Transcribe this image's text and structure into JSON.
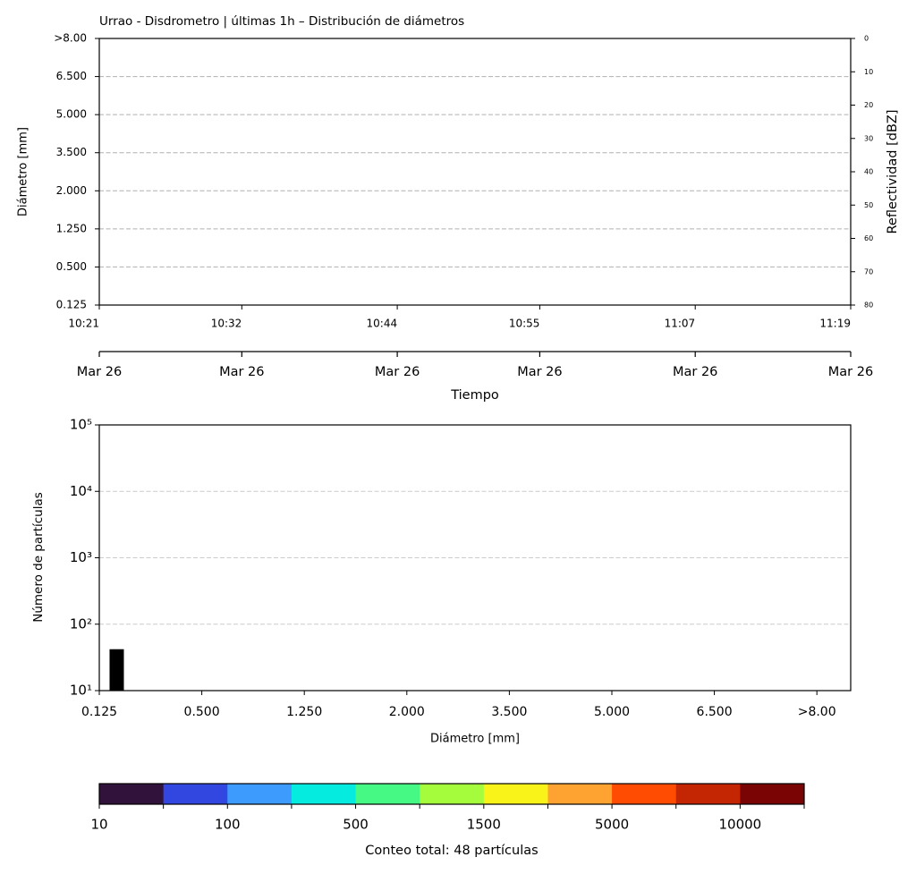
{
  "chart_data": [
    {
      "type": "heatmap",
      "title": "Urrao - Disdrometro | últimas 1h – Distribución de diámetros",
      "xlabel": "Tiempo",
      "ylabel": "Diámetro [mm]",
      "y2label": "Reflectividad [dBZ]",
      "xlim": [
        "10:21",
        "11:19"
      ],
      "xticks": [
        "10:21",
        "10:32",
        "10:44",
        "10:55",
        "11:07",
        "11:19"
      ],
      "x2ticks": [
        {
          "value": "10:21",
          "label": "Mar 26"
        },
        {
          "value": "10:32",
          "label": "Mar 26"
        },
        {
          "value": "10:44",
          "label": "Mar 26"
        },
        {
          "value": "10:55",
          "label": "Mar 26"
        },
        {
          "value": "11:07",
          "label": "Mar 26"
        },
        {
          "value": "11:19",
          "label": "Mar 26"
        }
      ],
      "ylim": [
        0,
        7
      ],
      "yticks": [
        {
          "value": 0,
          "label": "0.125"
        },
        {
          "value": 1,
          "label": "0.500"
        },
        {
          "value": 2,
          "label": "1.250"
        },
        {
          "value": 3,
          "label": "2.000"
        },
        {
          "value": 4,
          "label": "3.500"
        },
        {
          "value": 5,
          "label": "5.000"
        },
        {
          "value": 6,
          "label": "6.500"
        },
        {
          "value": 7,
          "label": ">8.00"
        }
      ],
      "y2lim": [
        80,
        0
      ],
      "y2ticks": [
        0,
        10,
        20,
        30,
        40,
        50,
        60,
        70,
        80
      ],
      "grid": true
    },
    {
      "type": "bar",
      "xlabel": "Diámetro [mm]",
      "ylabel": "Número de partículas",
      "x": [
        0.17
      ],
      "values": [
        42
      ],
      "color": "#000000",
      "xlim": [
        0,
        7.33
      ],
      "xticks": [
        {
          "value": 0,
          "label": "0.125"
        },
        {
          "value": 1,
          "label": "0.500"
        },
        {
          "value": 2,
          "label": "1.250"
        },
        {
          "value": 3,
          "label": "2.000"
        },
        {
          "value": 4,
          "label": "3.500"
        },
        {
          "value": 5,
          "label": "5.000"
        },
        {
          "value": 6,
          "label": "6.500"
        },
        {
          "value": 7,
          "label": ">8.00"
        }
      ],
      "ylim": [
        10,
        100000
      ],
      "yticks": [
        {
          "value": 10,
          "label": "10¹"
        },
        {
          "value": 100,
          "label": "10²"
        },
        {
          "value": 1000,
          "label": "10³"
        },
        {
          "value": 10000,
          "label": "10⁴"
        },
        {
          "value": 100000,
          "label": "10⁵"
        }
      ],
      "log_y": true,
      "grid": true
    },
    {
      "type": "colorbar",
      "label": "Conteo total: 48 partículas",
      "colors": [
        "#30123b",
        "#3246e0",
        "#3e9bfe",
        "#05ebe0",
        "#46f884",
        "#a4fc3c",
        "#faf31a",
        "#fea331",
        "#ff4c02",
        "#c42503",
        "#7a0403"
      ],
      "ticks": [
        10,
        null,
        100,
        null,
        500,
        null,
        1500,
        null,
        5000,
        null,
        10000,
        null
      ]
    }
  ]
}
